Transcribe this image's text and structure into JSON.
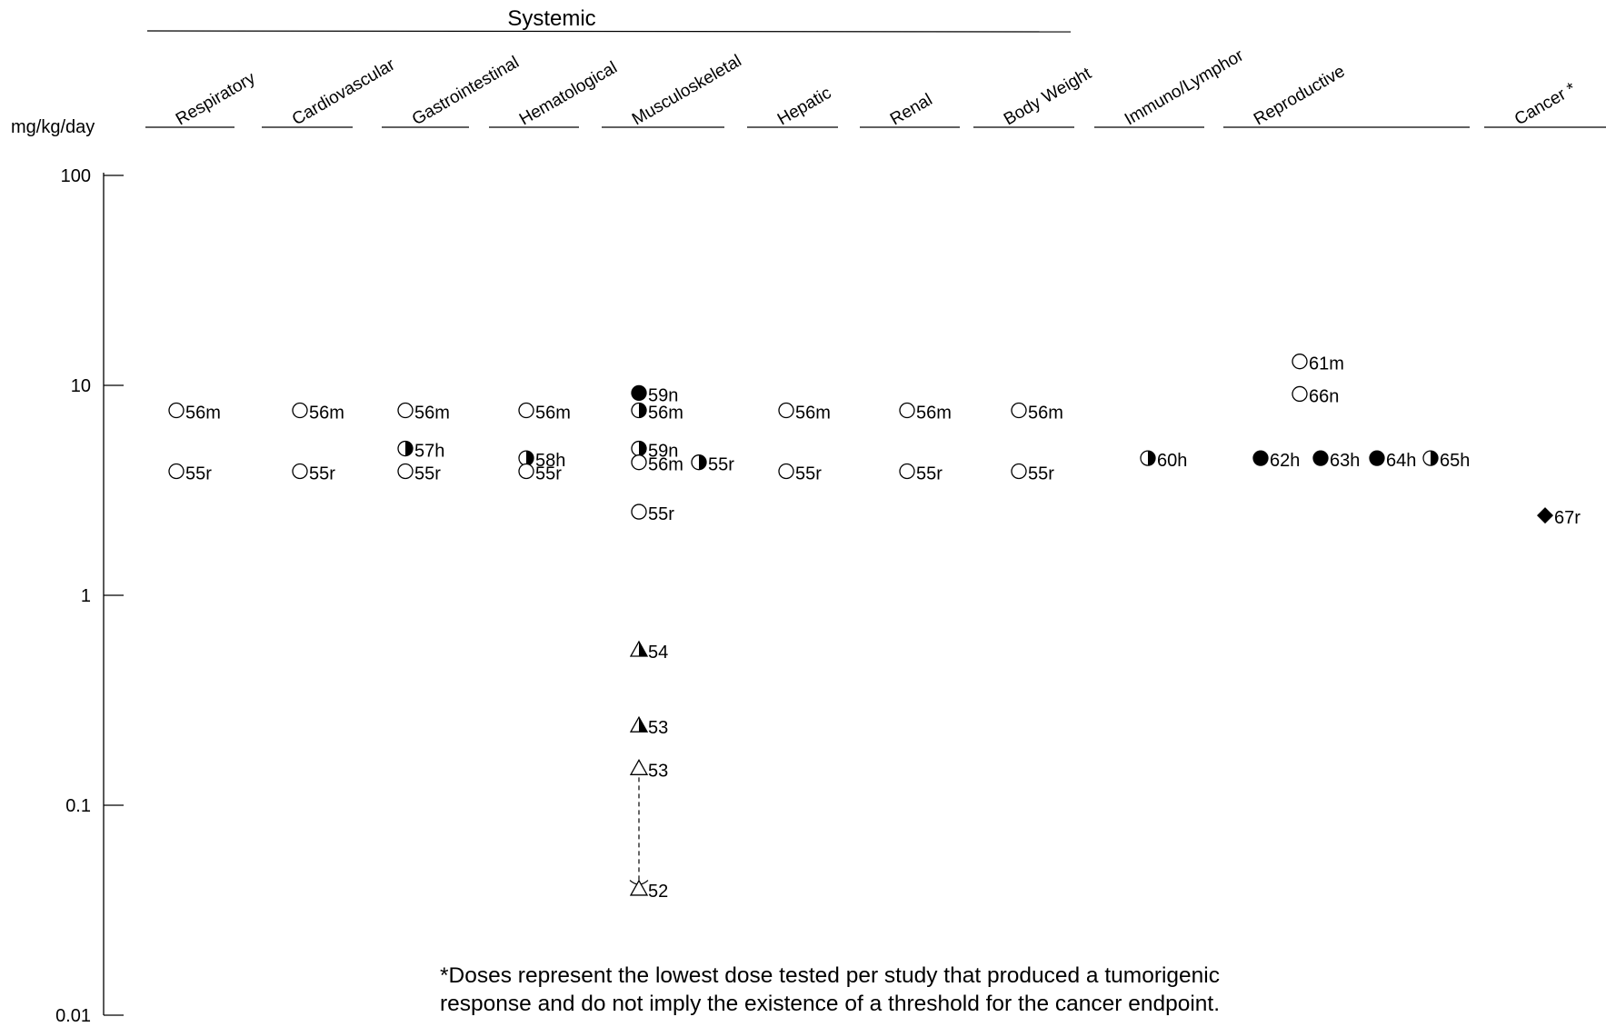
{
  "chart_data": {
    "type": "scatter",
    "y_unit": "mg/kg/day",
    "y_scale": "log",
    "ylim": [
      0.01,
      100
    ],
    "y_ticks": [
      {
        "value": 100,
        "label": "100"
      },
      {
        "value": 10,
        "label": "10"
      },
      {
        "value": 1,
        "label": "1"
      },
      {
        "value": 0.1,
        "label": "0.1"
      },
      {
        "value": 0.01,
        "label": "0.01"
      }
    ],
    "group_label": "Systemic",
    "categories": [
      "Respiratory",
      "Cardiovascular",
      "Gastrointestinal",
      "Hematological",
      "Musculoskeletal",
      "Hepatic",
      "Renal",
      "Body Weight",
      "Immuno/Lymphor",
      "Reproductive",
      "Cancer *"
    ],
    "points": [
      {
        "category": "Respiratory",
        "y": 7.6,
        "label": "56m",
        "marker": "circle-open"
      },
      {
        "category": "Respiratory",
        "y": 3.9,
        "label": "55r",
        "marker": "circle-open"
      },
      {
        "category": "Cardiovascular",
        "y": 7.6,
        "label": "56m",
        "marker": "circle-open"
      },
      {
        "category": "Cardiovascular",
        "y": 3.9,
        "label": "55r",
        "marker": "circle-open"
      },
      {
        "category": "Gastrointestinal",
        "y": 7.6,
        "label": "56m",
        "marker": "circle-open"
      },
      {
        "category": "Gastrointestinal",
        "y": 5.0,
        "label": "57h",
        "marker": "circle-half"
      },
      {
        "category": "Gastrointestinal",
        "y": 3.9,
        "label": "55r",
        "marker": "circle-open"
      },
      {
        "category": "Hematological",
        "y": 7.6,
        "label": "56m",
        "marker": "circle-open"
      },
      {
        "category": "Hematological",
        "y": 4.5,
        "label": "58h",
        "marker": "circle-half"
      },
      {
        "category": "Hematological",
        "y": 3.9,
        "label": "55r",
        "marker": "circle-open"
      },
      {
        "category": "Musculoskeletal",
        "y": 9.2,
        "label": "59n",
        "marker": "circle-filled"
      },
      {
        "category": "Musculoskeletal",
        "y": 7.6,
        "label": "56m",
        "marker": "circle-half"
      },
      {
        "category": "Musculoskeletal",
        "y": 5.0,
        "label": "59n",
        "marker": "circle-half"
      },
      {
        "category": "Musculoskeletal",
        "y": 4.3,
        "label": "56m",
        "marker": "circle-open"
      },
      {
        "category": "Musculoskeletal",
        "y": 4.3,
        "label": "55r",
        "marker": "circle-half"
      },
      {
        "category": "Musculoskeletal",
        "y": 2.5,
        "label": "55r",
        "marker": "circle-open"
      },
      {
        "category": "Musculoskeletal",
        "y": 0.55,
        "label": "54",
        "marker": "triangle-half"
      },
      {
        "category": "Musculoskeletal",
        "y": 0.24,
        "label": "53",
        "marker": "triangle-half"
      },
      {
        "category": "Musculoskeletal",
        "y": 0.15,
        "label": "53",
        "marker": "triangle-open"
      },
      {
        "category": "Musculoskeletal",
        "y": 0.04,
        "label": "52",
        "marker": "triangle-open"
      },
      {
        "category": "Hepatic",
        "y": 7.6,
        "label": "56m",
        "marker": "circle-open"
      },
      {
        "category": "Hepatic",
        "y": 3.9,
        "label": "55r",
        "marker": "circle-open"
      },
      {
        "category": "Renal",
        "y": 7.6,
        "label": "56m",
        "marker": "circle-open"
      },
      {
        "category": "Renal",
        "y": 3.9,
        "label": "55r",
        "marker": "circle-open"
      },
      {
        "category": "Body Weight",
        "y": 7.6,
        "label": "56m",
        "marker": "circle-open"
      },
      {
        "category": "Body Weight",
        "y": 3.9,
        "label": "55r",
        "marker": "circle-open"
      },
      {
        "category": "Immuno/Lymphor",
        "y": 4.5,
        "label": "60h",
        "marker": "circle-half"
      },
      {
        "category": "Reproductive",
        "y": 13,
        "label": "61m",
        "marker": "circle-open"
      },
      {
        "category": "Reproductive",
        "y": 9.1,
        "label": "66n",
        "marker": "circle-open"
      },
      {
        "category": "Reproductive",
        "y": 4.5,
        "label": "62h",
        "marker": "circle-filled"
      },
      {
        "category": "Reproductive",
        "y": 4.5,
        "label": "63h",
        "marker": "circle-filled"
      },
      {
        "category": "Reproductive",
        "y": 4.5,
        "label": "64h",
        "marker": "circle-filled"
      },
      {
        "category": "Reproductive",
        "y": 4.5,
        "label": "65h",
        "marker": "circle-half"
      },
      {
        "category": "Cancer *",
        "y": 2.4,
        "label": "67r",
        "marker": "diamond-filled"
      }
    ],
    "range_arrow": {
      "category": "Musculoskeletal",
      "from": 0.15,
      "to": 0.05,
      "style": "dashed"
    },
    "footnote": [
      "*Doses represent the lowest dose tested per study that produced a tumorigenic",
      "response and do not imply the existence of a threshold for the cancer endpoint."
    ]
  }
}
